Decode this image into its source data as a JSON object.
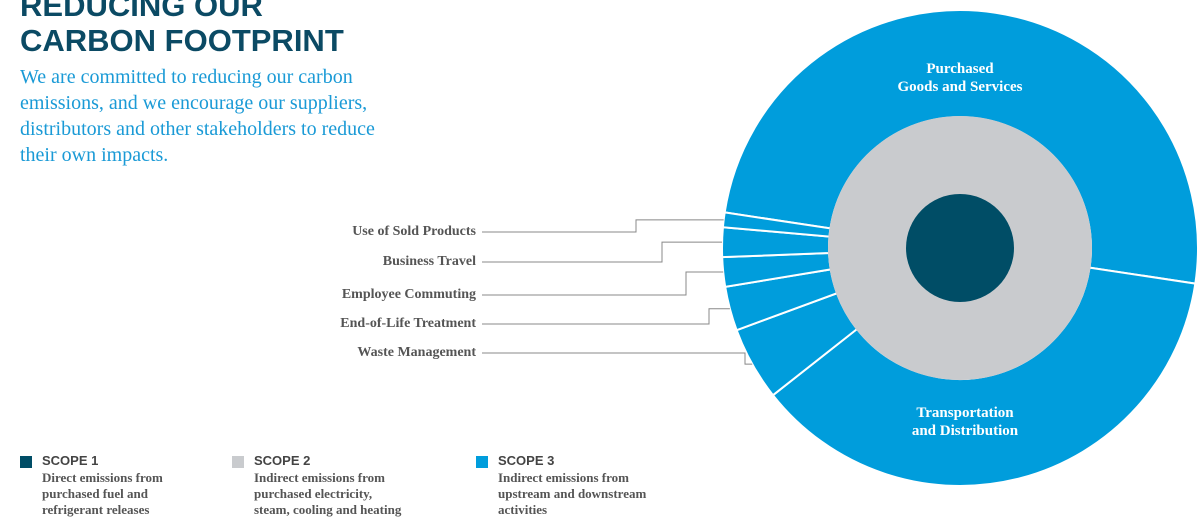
{
  "header": {
    "title": "REDUCING OUR\nCARBON FOOTPRINT",
    "intro": "We are committed to reducing our carbon emissions, and we encourage our suppliers, distributors and other stakeholders to reduce their own impacts."
  },
  "chart_data": {
    "type": "sunburst",
    "categories": [
      "Purchased\nGoods and Services",
      "Transportation\nand Distribution",
      "Waste Management",
      "End-of-Life Treatment",
      "Employee Commuting",
      "Business Travel",
      "Use of Sold Products"
    ],
    "values": [
      50,
      37,
      5,
      3,
      2,
      2,
      1
    ],
    "color": "#009ddc",
    "legend": [
      {
        "name": "SCOPE 1",
        "description": "Direct emissions from\npurchased fuel and\nrefrigerant releases",
        "color": "#004d66"
      },
      {
        "name": "SCOPE 2",
        "description": "Indirect emissions from\npurchased electricity,\nsteam, cooling and heating",
        "color": "#c9cbce"
      },
      {
        "name": "SCOPE 3",
        "description": "Indirect emissions from\nupstream and downstream\nactivities",
        "color": "#009ddc"
      }
    ]
  }
}
